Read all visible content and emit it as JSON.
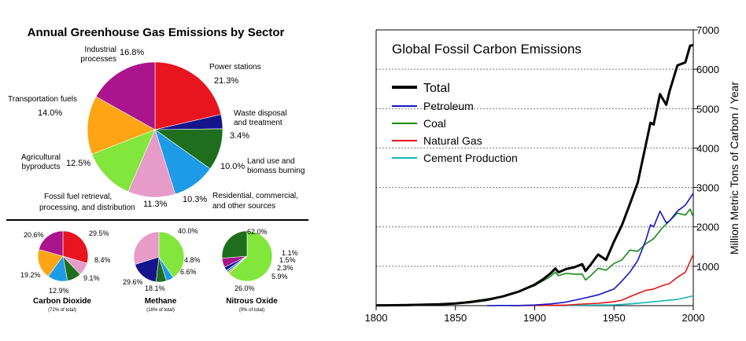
{
  "chart_data": [
    {
      "type": "pie",
      "title": "Annual Greenhouse Gas Emissions by Sector",
      "slices": [
        {
          "label": "Power stations",
          "value": 21.3,
          "value_label": "21.3%",
          "color": "#e8141e"
        },
        {
          "label": "Waste disposal and treatment",
          "value": 3.4,
          "value_label": "3.4%",
          "color": "#14148c"
        },
        {
          "label": "Land use and biomass burning",
          "value": 10.0,
          "value_label": "10.0%",
          "color": "#1e6e1e"
        },
        {
          "label": "Residential, commercial, and other sources",
          "value": 10.3,
          "value_label": "10.3%",
          "color": "#1e9be6"
        },
        {
          "label": "Fossil fuel retrieval, processing, and distribution",
          "value": 11.3,
          "value_label": "11.3%",
          "color": "#e69bc8"
        },
        {
          "label": "Agricultural byproducts",
          "value": 12.5,
          "value_label": "12.5%",
          "color": "#82e63c"
        },
        {
          "label": "Transportation fuels",
          "value": 14.0,
          "value_label": "14.0%",
          "color": "#ffa514"
        },
        {
          "label": "Industrial processes",
          "value": 16.8,
          "value_label": "16.8%",
          "color": "#aa148c"
        }
      ]
    },
    {
      "type": "pie",
      "title": "Carbon Dioxide",
      "subtitle": "(72% of total)",
      "slices": [
        {
          "value": 29.5,
          "value_label": "29.5%",
          "color": "#e8141e"
        },
        {
          "value": 8.4,
          "value_label": "8.4%",
          "color": "#e69bc8"
        },
        {
          "value": 9.1,
          "value_label": "9.1%",
          "color": "#1e6e1e"
        },
        {
          "value": 12.9,
          "value_label": "12.9%",
          "color": "#1e9be6"
        },
        {
          "value": 19.2,
          "value_label": "19.2%",
          "color": "#ffa514"
        },
        {
          "value": 20.6,
          "value_label": "20.6%",
          "color": "#aa148c"
        }
      ]
    },
    {
      "type": "pie",
      "title": "Methane",
      "subtitle": "(18% of total)",
      "slices": [
        {
          "value": 40.0,
          "value_label": "40.0%",
          "color": "#82e63c"
        },
        {
          "value": 4.8,
          "value_label": "4.8%",
          "color": "#1e9be6"
        },
        {
          "value": 6.6,
          "value_label": "6.6%",
          "color": "#1e6e1e"
        },
        {
          "value": 18.1,
          "value_label": "18.1%",
          "color": "#14148c"
        },
        {
          "value": 29.6,
          "value_label": "29.6%",
          "color": "#e69bc8"
        }
      ]
    },
    {
      "type": "pie",
      "title": "Nitrous Oxide",
      "subtitle": "(9% of total)",
      "slices": [
        {
          "value": 62.0,
          "value_label": "62.0%",
          "color": "#82e63c"
        },
        {
          "value": 1.1,
          "value_label": "1.1%",
          "color": "#ffa514"
        },
        {
          "value": 1.5,
          "value_label": "1.5%",
          "color": "#1e9be6"
        },
        {
          "value": 2.3,
          "value_label": "2.3%",
          "color": "#14148c"
        },
        {
          "value": 5.9,
          "value_label": "5.9%",
          "color": "#aa148c"
        },
        {
          "value": 26.0,
          "value_label": "26.0%",
          "color": "#1e6e1e"
        }
      ]
    },
    {
      "type": "line",
      "title": "Global Fossil Carbon Emissions",
      "xlabel": "",
      "ylabel": "Million Metric Tons of Carbon / Year",
      "xlim": [
        1800,
        2000
      ],
      "ylim": [
        0,
        7000
      ],
      "xticks": [
        1800,
        1850,
        1900,
        1950,
        2000
      ],
      "yticks": [
        1000,
        2000,
        3000,
        4000,
        5000,
        6000,
        7000
      ],
      "grid": "horizontal dotted",
      "legend": "top-left",
      "series": [
        {
          "name": "Total",
          "color": "#000000",
          "x": [
            1800,
            1810,
            1820,
            1830,
            1840,
            1850,
            1860,
            1870,
            1880,
            1890,
            1900,
            1905,
            1910,
            1913,
            1915,
            1920,
            1925,
            1930,
            1932,
            1935,
            1940,
            1945,
            1950,
            1955,
            1960,
            1965,
            1970,
            1973,
            1975,
            1979,
            1980,
            1983,
            1985,
            1990,
            1995,
            1998,
            2000
          ],
          "y": [
            8,
            10,
            14,
            24,
            33,
            54,
            91,
            147,
            236,
            356,
            534,
            663,
            819,
            943,
            845,
            932,
            975,
            1053,
            880,
            1025,
            1299,
            1160,
            1630,
            2040,
            2577,
            3130,
            4076,
            4642,
            4596,
            5369,
            5299,
            5100,
            5438,
            6096,
            6174,
            6600,
            6611
          ]
        },
        {
          "name": "Petroleum",
          "color": "#1414c8",
          "x": [
            1870,
            1890,
            1900,
            1910,
            1920,
            1930,
            1940,
            1950,
            1955,
            1960,
            1965,
            1970,
            1973,
            1975,
            1979,
            1983,
            1985,
            1990,
            1995,
            2000
          ],
          "y": [
            1,
            3,
            16,
            43,
            91,
            180,
            274,
            423,
            625,
            849,
            1148,
            1655,
            2050,
            2000,
            2400,
            2100,
            2150,
            2400,
            2550,
            2850
          ]
        },
        {
          "name": "Coal",
          "color": "#148c14",
          "x": [
            1800,
            1850,
            1880,
            1900,
            1910,
            1913,
            1915,
            1920,
            1925,
            1930,
            1932,
            1935,
            1940,
            1945,
            1950,
            1955,
            1960,
            1965,
            1970,
            1975,
            1980,
            1985,
            1990,
            1995,
            1998,
            2000
          ],
          "y": [
            8,
            54,
            230,
            507,
            742,
            850,
            760,
            820,
            800,
            800,
            650,
            750,
            950,
            900,
            1070,
            1160,
            1410,
            1380,
            1570,
            1700,
            1950,
            2150,
            2350,
            2300,
            2450,
            2250
          ]
        },
        {
          "name": "Natural Gas",
          "color": "#e61414",
          "x": [
            1885,
            1900,
            1910,
            1920,
            1930,
            1940,
            1950,
            1955,
            1960,
            1965,
            1970,
            1975,
            1980,
            1985,
            1990,
            1995,
            2000
          ],
          "y": [
            1,
            3,
            8,
            13,
            39,
            60,
            97,
            140,
            227,
            310,
            387,
            420,
            500,
            560,
            720,
            850,
            1300
          ]
        },
        {
          "name": "Cement Production",
          "color": "#14b4b4",
          "x": [
            1920,
            1930,
            1940,
            1950,
            1960,
            1970,
            1980,
            1990,
            2000
          ],
          "y": [
            6,
            10,
            15,
            18,
            43,
            78,
            120,
            157,
            250
          ]
        }
      ]
    }
  ]
}
